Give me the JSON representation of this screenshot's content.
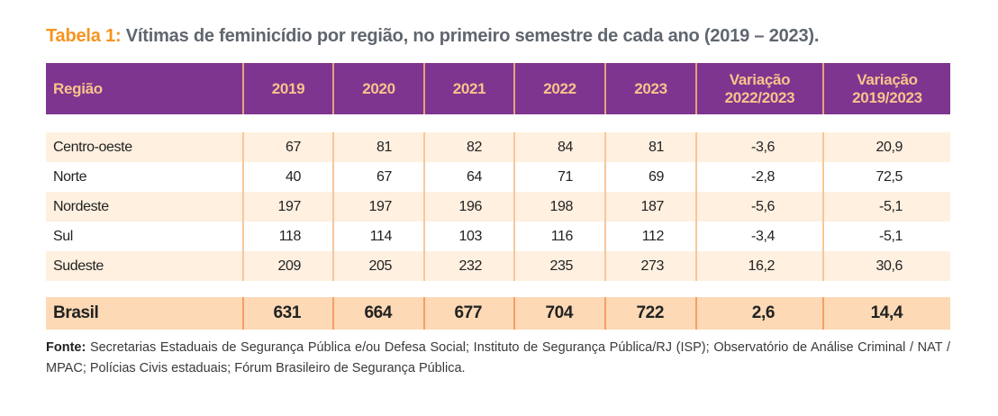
{
  "title": {
    "label": "Tabela 1:",
    "text": " Vítimas de feminicídio por região, no primeiro semestre de cada ano (2019 – 2023)."
  },
  "colors": {
    "header_bg": "#7e3590",
    "header_text": "#f9c38b",
    "accent": "#f7931e",
    "row_alt": "#fff0e0",
    "total_row": "#fdd9b5"
  },
  "table": {
    "headers": [
      "Região",
      "2019",
      "2020",
      "2021",
      "2022",
      "2023",
      "Variação 2022/2023",
      "Variação 2019/2023"
    ],
    "rows": [
      [
        "Centro-oeste",
        "67",
        "81",
        "82",
        "84",
        "81",
        "-3,6",
        "20,9"
      ],
      [
        "Norte",
        "40",
        "67",
        "64",
        "71",
        "69",
        "-2,8",
        "72,5"
      ],
      [
        "Nordeste",
        "197",
        "197",
        "196",
        "198",
        "187",
        "-5,6",
        "-5,1"
      ],
      [
        "Sul",
        "118",
        "114",
        "103",
        "116",
        "112",
        "-3,4",
        "-5,1"
      ],
      [
        "Sudeste",
        "209",
        "205",
        "232",
        "235",
        "273",
        "16,2",
        "30,6"
      ]
    ],
    "total": [
      "Brasil",
      "631",
      "664",
      "677",
      "704",
      "722",
      "2,6",
      "14,4"
    ]
  },
  "source": {
    "label": "Fonte:",
    "text": " Secretarias Estaduais de Segurança Pública e/ou Defesa Social; Instituto de Segurança Pública/RJ (ISP); Observatório de Análise Criminal / NAT / MPAC; Polícias Civis estaduais; Fórum Brasileiro de Segurança Pública."
  }
}
